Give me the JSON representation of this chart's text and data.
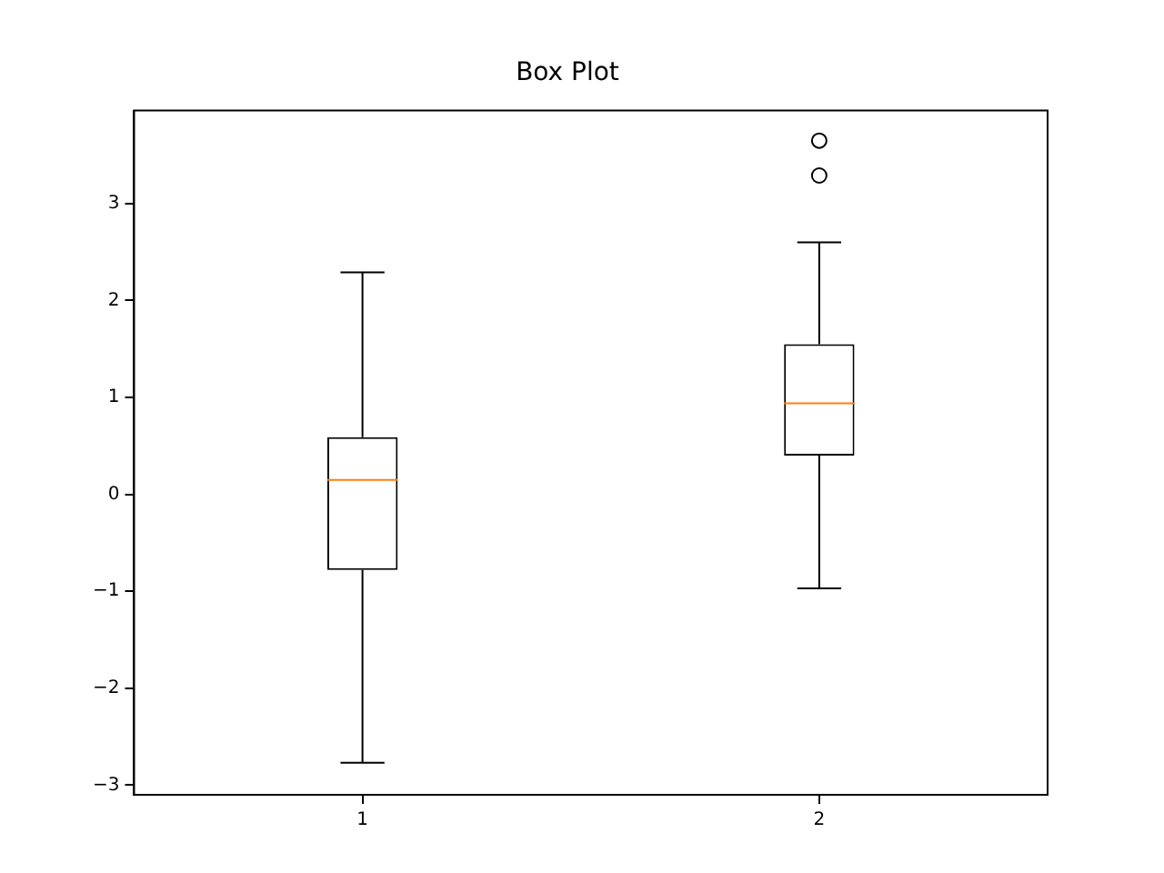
{
  "chart_data": {
    "type": "box",
    "title": "Box Plot",
    "categories": [
      "1",
      "2"
    ],
    "boxes": [
      {
        "low": -2.77,
        "q1": -0.78,
        "median": 0.15,
        "q3": 0.59,
        "high": 2.29
      },
      {
        "low": -0.97,
        "q1": 0.4,
        "median": 0.94,
        "q3": 1.55,
        "high": 2.6,
        "outliers": [
          3.29,
          3.65
        ]
      }
    ],
    "ylim": [
      -3.1,
      3.96
    ],
    "yticks": [
      -3,
      -2,
      -1,
      0,
      1,
      2,
      3
    ],
    "grid": false
  }
}
